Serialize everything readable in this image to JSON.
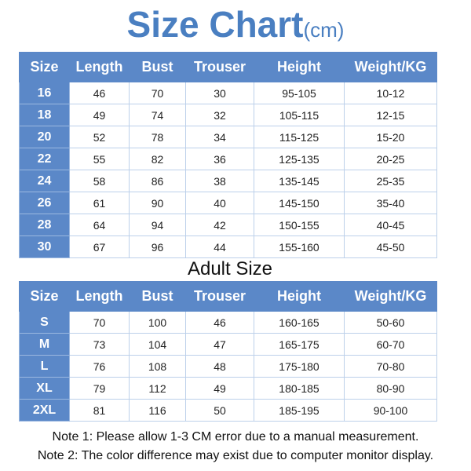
{
  "header": {
    "title": "Size Chart",
    "unit": "(cm)"
  },
  "kids_table": {
    "columns": [
      "Size",
      "Length",
      "Bust",
      "Trouser",
      "Height",
      "Weight/KG"
    ],
    "rows": [
      [
        "16",
        "46",
        "70",
        "30",
        "95-105",
        "10-12"
      ],
      [
        "18",
        "49",
        "74",
        "32",
        "105-115",
        "12-15"
      ],
      [
        "20",
        "52",
        "78",
        "34",
        "115-125",
        "15-20"
      ],
      [
        "22",
        "55",
        "82",
        "36",
        "125-135",
        "20-25"
      ],
      [
        "24",
        "58",
        "86",
        "38",
        "135-145",
        "25-35"
      ],
      [
        "26",
        "61",
        "90",
        "40",
        "145-150",
        "35-40"
      ],
      [
        "28",
        "64",
        "94",
        "42",
        "150-155",
        "40-45"
      ],
      [
        "30",
        "67",
        "96",
        "44",
        "155-160",
        "45-50"
      ]
    ]
  },
  "adult_title": "Adult Size",
  "adult_table": {
    "columns": [
      "Size",
      "Length",
      "Bust",
      "Trouser",
      "Height",
      "Weight/KG"
    ],
    "rows": [
      [
        "S",
        "70",
        "100",
        "46",
        "160-165",
        "50-60"
      ],
      [
        "M",
        "73",
        "104",
        "47",
        "165-175",
        "60-70"
      ],
      [
        "L",
        "76",
        "108",
        "48",
        "175-180",
        "70-80"
      ],
      [
        "XL",
        "79",
        "112",
        "49",
        "180-185",
        "80-90"
      ],
      [
        "2XL",
        "81",
        "116",
        "50",
        "185-195",
        "90-100"
      ]
    ]
  },
  "notes": [
    "Note 1: Please allow 1-3 CM error due to a manual measurement.",
    "Note 2: The color difference may exist due to computer monitor display."
  ]
}
